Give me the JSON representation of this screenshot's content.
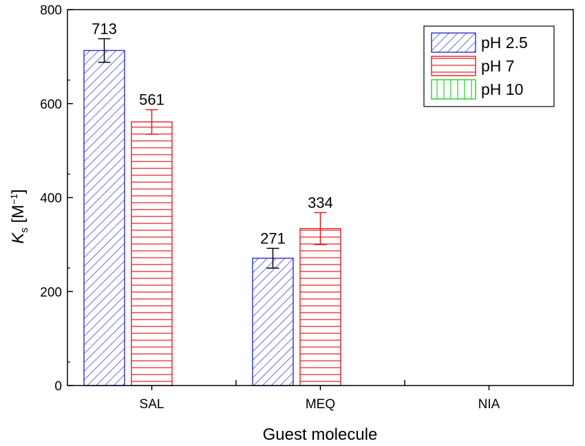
{
  "chart_data": {
    "type": "bar",
    "title": "",
    "xlabel": "Guest molecule",
    "ylabel": {
      "main": "K",
      "sub": "s",
      "unit_open": " [M",
      "unit_sup": "−1",
      "unit_close": "]"
    },
    "categories": [
      "SAL",
      "MEQ",
      "NIA"
    ],
    "ylim": [
      0,
      800
    ],
    "yticks": [
      0,
      200,
      400,
      600,
      800
    ],
    "legend_position": "top-right",
    "series": [
      {
        "name": "pH 2.5",
        "color": "#2b2bd6",
        "pattern": "diagonal",
        "values": [
          713,
          271,
          null
        ],
        "errors": [
          25,
          21,
          null
        ],
        "labels": [
          "713",
          "271",
          ""
        ]
      },
      {
        "name": "pH 7",
        "color": "#e31a1c",
        "pattern": "horizontal",
        "values": [
          561,
          334,
          null
        ],
        "errors": [
          26,
          34,
          null
        ],
        "labels": [
          "561",
          "334",
          ""
        ]
      },
      {
        "name": "pH 10",
        "color": "#1fd01f",
        "pattern": "vertical",
        "values": [
          null,
          null,
          null
        ],
        "errors": [
          null,
          null,
          null
        ],
        "labels": [
          "",
          "",
          ""
        ]
      }
    ]
  }
}
